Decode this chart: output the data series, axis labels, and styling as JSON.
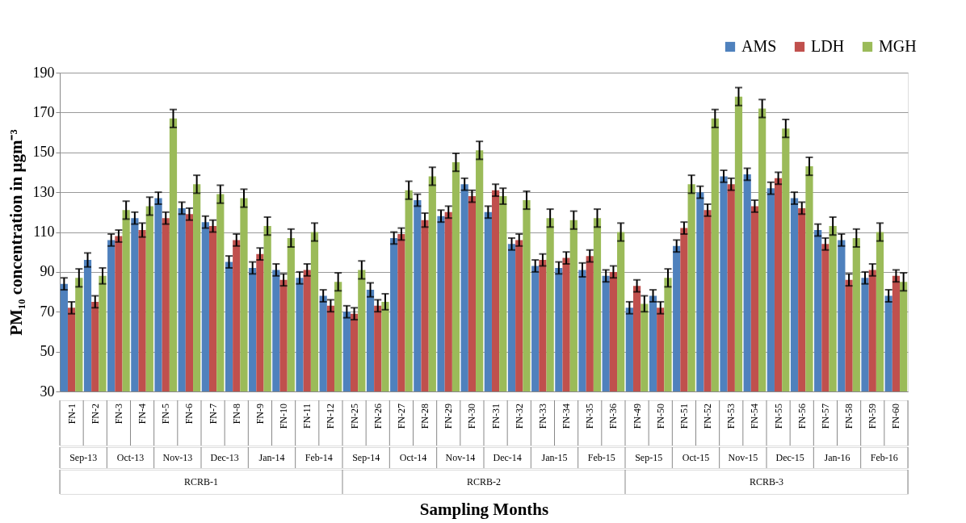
{
  "chart_data": {
    "type": "bar",
    "xlabel": "Sampling Months",
    "ylabel": "PM₁₀ concentration in µgm⁻³",
    "categories": [
      "FN-1",
      "FN-2",
      "FN-3",
      "FN-4",
      "FN-5",
      "FN-6",
      "FN-7",
      "FN-8",
      "FN-9",
      "FN-10",
      "FN-11",
      "FN-12",
      "FN-25",
      "FN-26",
      "FN-27",
      "FN-28",
      "FN-29",
      "FN-30",
      "FN-31",
      "FN-32",
      "FN-33",
      "FN-34",
      "FN-35",
      "FN-36",
      "FN-49",
      "FN-50",
      "FN-51",
      "FN-52",
      "FN-53",
      "FN-54",
      "FN-55",
      "FN-56",
      "FN-57",
      "FN-58",
      "FN-59",
      "FN-60"
    ],
    "series": [
      {
        "name": "AMS",
        "color": "#4f81bd",
        "values": [
          84,
          96,
          106,
          117,
          127,
          122,
          115,
          95,
          92,
          91,
          87,
          78,
          70,
          81,
          107,
          126,
          118,
          134,
          120,
          104,
          93,
          92,
          91,
          88,
          72,
          78,
          103,
          130,
          138,
          139,
          132,
          127,
          111,
          106,
          87,
          78
        ],
        "errors": [
          3,
          3.5,
          3,
          3,
          3,
          3,
          3,
          3,
          3,
          3,
          3,
          3,
          3,
          3.5,
          3,
          3,
          3,
          3,
          3,
          3,
          3,
          3,
          3.5,
          3,
          3,
          3,
          3,
          3,
          3,
          3,
          3,
          3,
          3,
          3,
          3,
          3
        ]
      },
      {
        "name": "LDH",
        "color": "#c0504d",
        "values": [
          72,
          75,
          108,
          111,
          117,
          119,
          113,
          106,
          99,
          86,
          91,
          73,
          69,
          73,
          109,
          116,
          120,
          128,
          131,
          106,
          96,
          97,
          98,
          90,
          83,
          72,
          112,
          121,
          134,
          123,
          137,
          122,
          104,
          86,
          91,
          88
        ],
        "errors": [
          3,
          3,
          3,
          3.5,
          3,
          3,
          3,
          3,
          3,
          3,
          3,
          3,
          3,
          3,
          3,
          3.5,
          3,
          3,
          3,
          3,
          3,
          3,
          3,
          3,
          3,
          3,
          3,
          3,
          3,
          3,
          3,
          3,
          3,
          3,
          3,
          3
        ]
      },
      {
        "name": "MGH",
        "color": "#9bbb59",
        "values": [
          87,
          88,
          121,
          123,
          167,
          134,
          129,
          127,
          113,
          107,
          110,
          85,
          91,
          75,
          131,
          138,
          145,
          151,
          128,
          126,
          117,
          116,
          117,
          110,
          74,
          87,
          134,
          167,
          178,
          172,
          162,
          143,
          113,
          107,
          110,
          85
        ],
        "errors": [
          4.5,
          4,
          4.5,
          4.5,
          4.5,
          4.5,
          4.5,
          4.5,
          4.5,
          4.5,
          4.5,
          4.5,
          4.5,
          4,
          4.5,
          4.5,
          4.5,
          4.5,
          4,
          4.5,
          4.5,
          4.5,
          4.5,
          4.5,
          4,
          4.5,
          4.5,
          4.5,
          4.5,
          4.5,
          4.5,
          4.5,
          4.5,
          4.5,
          4.5,
          4.5
        ]
      }
    ],
    "ylim": [
      30,
      190
    ],
    "yticks": [
      30,
      50,
      70,
      90,
      110,
      130,
      150,
      170,
      190
    ],
    "grid": "y",
    "legend": "top right",
    "annotations": [
      "Sep-13",
      "Oct-13",
      "Nov-13",
      "Dec-13",
      "Jan-14",
      "Feb-14",
      "Sep-14",
      "Oct-14",
      "Nov-14",
      "Dec-14",
      "Jan-15",
      "Feb-15",
      "Sep-15",
      "Oct-15",
      "Nov-15",
      "Dec-15",
      "Jan-16",
      "Feb-16",
      "RCRB-1",
      "RCRB-2",
      "RCRB-3"
    ]
  }
}
